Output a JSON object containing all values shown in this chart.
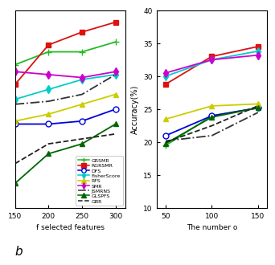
{
  "left": {
    "x": [
      150,
      200,
      250,
      300
    ],
    "xlim": [
      155,
      315
    ],
    "ylim": [
      19,
      39
    ],
    "yticks": [],
    "xlabel": "f selected features",
    "series": {
      "GRSMR": {
        "color": "#22bb22",
        "linestyle": "-",
        "marker": "+",
        "markersize": 6,
        "markerfacecolor": "#22bb22",
        "values": [
          33.5,
          34.8,
          34.8,
          35.8
        ]
      },
      "RGRSMR": {
        "color": "#dd1111",
        "linestyle": "-",
        "marker": "s",
        "markersize": 4,
        "markerfacecolor": "#dd1111",
        "values": [
          31.5,
          35.5,
          36.8,
          37.8
        ]
      },
      "DFS": {
        "color": "#0000dd",
        "linestyle": "-",
        "marker": "o",
        "markersize": 5,
        "markerfacecolor": "white",
        "values": [
          27.5,
          27.5,
          27.8,
          29.0
        ]
      },
      "FisherScore": {
        "color": "#00cccc",
        "linestyle": "-",
        "marker": "d",
        "markersize": 5,
        "markerfacecolor": "#00cccc",
        "values": [
          30.0,
          31.0,
          32.0,
          32.5
        ]
      },
      "RFS": {
        "color": "#cccc00",
        "linestyle": "-",
        "marker": "^",
        "markersize": 5,
        "markerfacecolor": "#cccc00",
        "values": [
          27.8,
          28.5,
          29.5,
          30.5
        ]
      },
      "SMR": {
        "color": "#cc00cc",
        "linestyle": "-",
        "marker": "d",
        "markersize": 5,
        "markerfacecolor": "#cc00cc",
        "values": [
          32.8,
          32.5,
          32.2,
          32.8
        ]
      },
      "JSMRNS": {
        "color": "#333333",
        "linestyle": "-.",
        "marker": "",
        "markersize": 0,
        "markerfacecolor": "#333333",
        "values": [
          29.5,
          29.8,
          30.5,
          32.5
        ]
      },
      "GLSPFS": {
        "color": "#006600",
        "linestyle": "-",
        "marker": "^",
        "markersize": 5,
        "markerfacecolor": "#006600",
        "values": [
          21.5,
          24.5,
          25.5,
          27.5
        ]
      },
      "GBR": {
        "color": "#222222",
        "linestyle": "--",
        "marker": "",
        "markersize": 0,
        "markerfacecolor": "#222222",
        "values": [
          23.5,
          25.5,
          26.0,
          26.5
        ]
      }
    }
  },
  "right": {
    "x": [
      50,
      100,
      150
    ],
    "xlim": [
      40,
      160
    ],
    "ylim": [
      10,
      40
    ],
    "yticks": [
      10,
      15,
      20,
      25,
      30,
      35,
      40
    ],
    "ylabel": "Accuracy(%)",
    "xlabel": "The number o",
    "series": {
      "GRSMR": {
        "color": "#22bb22",
        "linestyle": "-",
        "marker": "+",
        "markersize": 6,
        "markerfacecolor": "#22bb22",
        "values": [
          19.5,
          24.0,
          25.2
        ]
      },
      "RGRSMR": {
        "color": "#dd1111",
        "linestyle": "-",
        "marker": "s",
        "markersize": 4,
        "markerfacecolor": "#dd1111",
        "values": [
          28.8,
          33.0,
          34.5
        ]
      },
      "DFS": {
        "color": "#0000dd",
        "linestyle": "-",
        "marker": "o",
        "markersize": 5,
        "markerfacecolor": "white",
        "values": [
          21.0,
          24.0,
          25.2
        ]
      },
      "FisherScore": {
        "color": "#00cccc",
        "linestyle": "-",
        "marker": "d",
        "markersize": 5,
        "markerfacecolor": "#00cccc",
        "values": [
          30.0,
          32.5,
          33.8
        ]
      },
      "RFS": {
        "color": "#cccc00",
        "linestyle": "-",
        "marker": "^",
        "markersize": 5,
        "markerfacecolor": "#cccc00",
        "values": [
          23.5,
          25.5,
          25.8
        ]
      },
      "SMR": {
        "color": "#cc00cc",
        "linestyle": "-",
        "marker": "d",
        "markersize": 5,
        "markerfacecolor": "#cc00cc",
        "values": [
          30.5,
          32.5,
          33.2
        ]
      },
      "JSMRNS": {
        "color": "#333333",
        "linestyle": "-.",
        "marker": "",
        "markersize": 0,
        "markerfacecolor": "#333333",
        "values": [
          20.2,
          21.0,
          24.5
        ]
      },
      "GLSPFS": {
        "color": "#006600",
        "linestyle": "-",
        "marker": "^",
        "markersize": 5,
        "markerfacecolor": "#006600",
        "values": [
          19.8,
          23.8,
          25.2
        ]
      },
      "GBR": {
        "color": "#222222",
        "linestyle": "--",
        "marker": "",
        "markersize": 0,
        "markerfacecolor": "#222222",
        "values": [
          20.0,
          22.5,
          25.5
        ]
      }
    }
  },
  "legend_order": [
    "GRSMR",
    "RGRSMR",
    "DFS",
    "FisherScore",
    "RFS",
    "SMR",
    "JSMRNS",
    "GLSPFS",
    "GBR"
  ],
  "bottom_label": "b",
  "background_color": "#ffffff"
}
